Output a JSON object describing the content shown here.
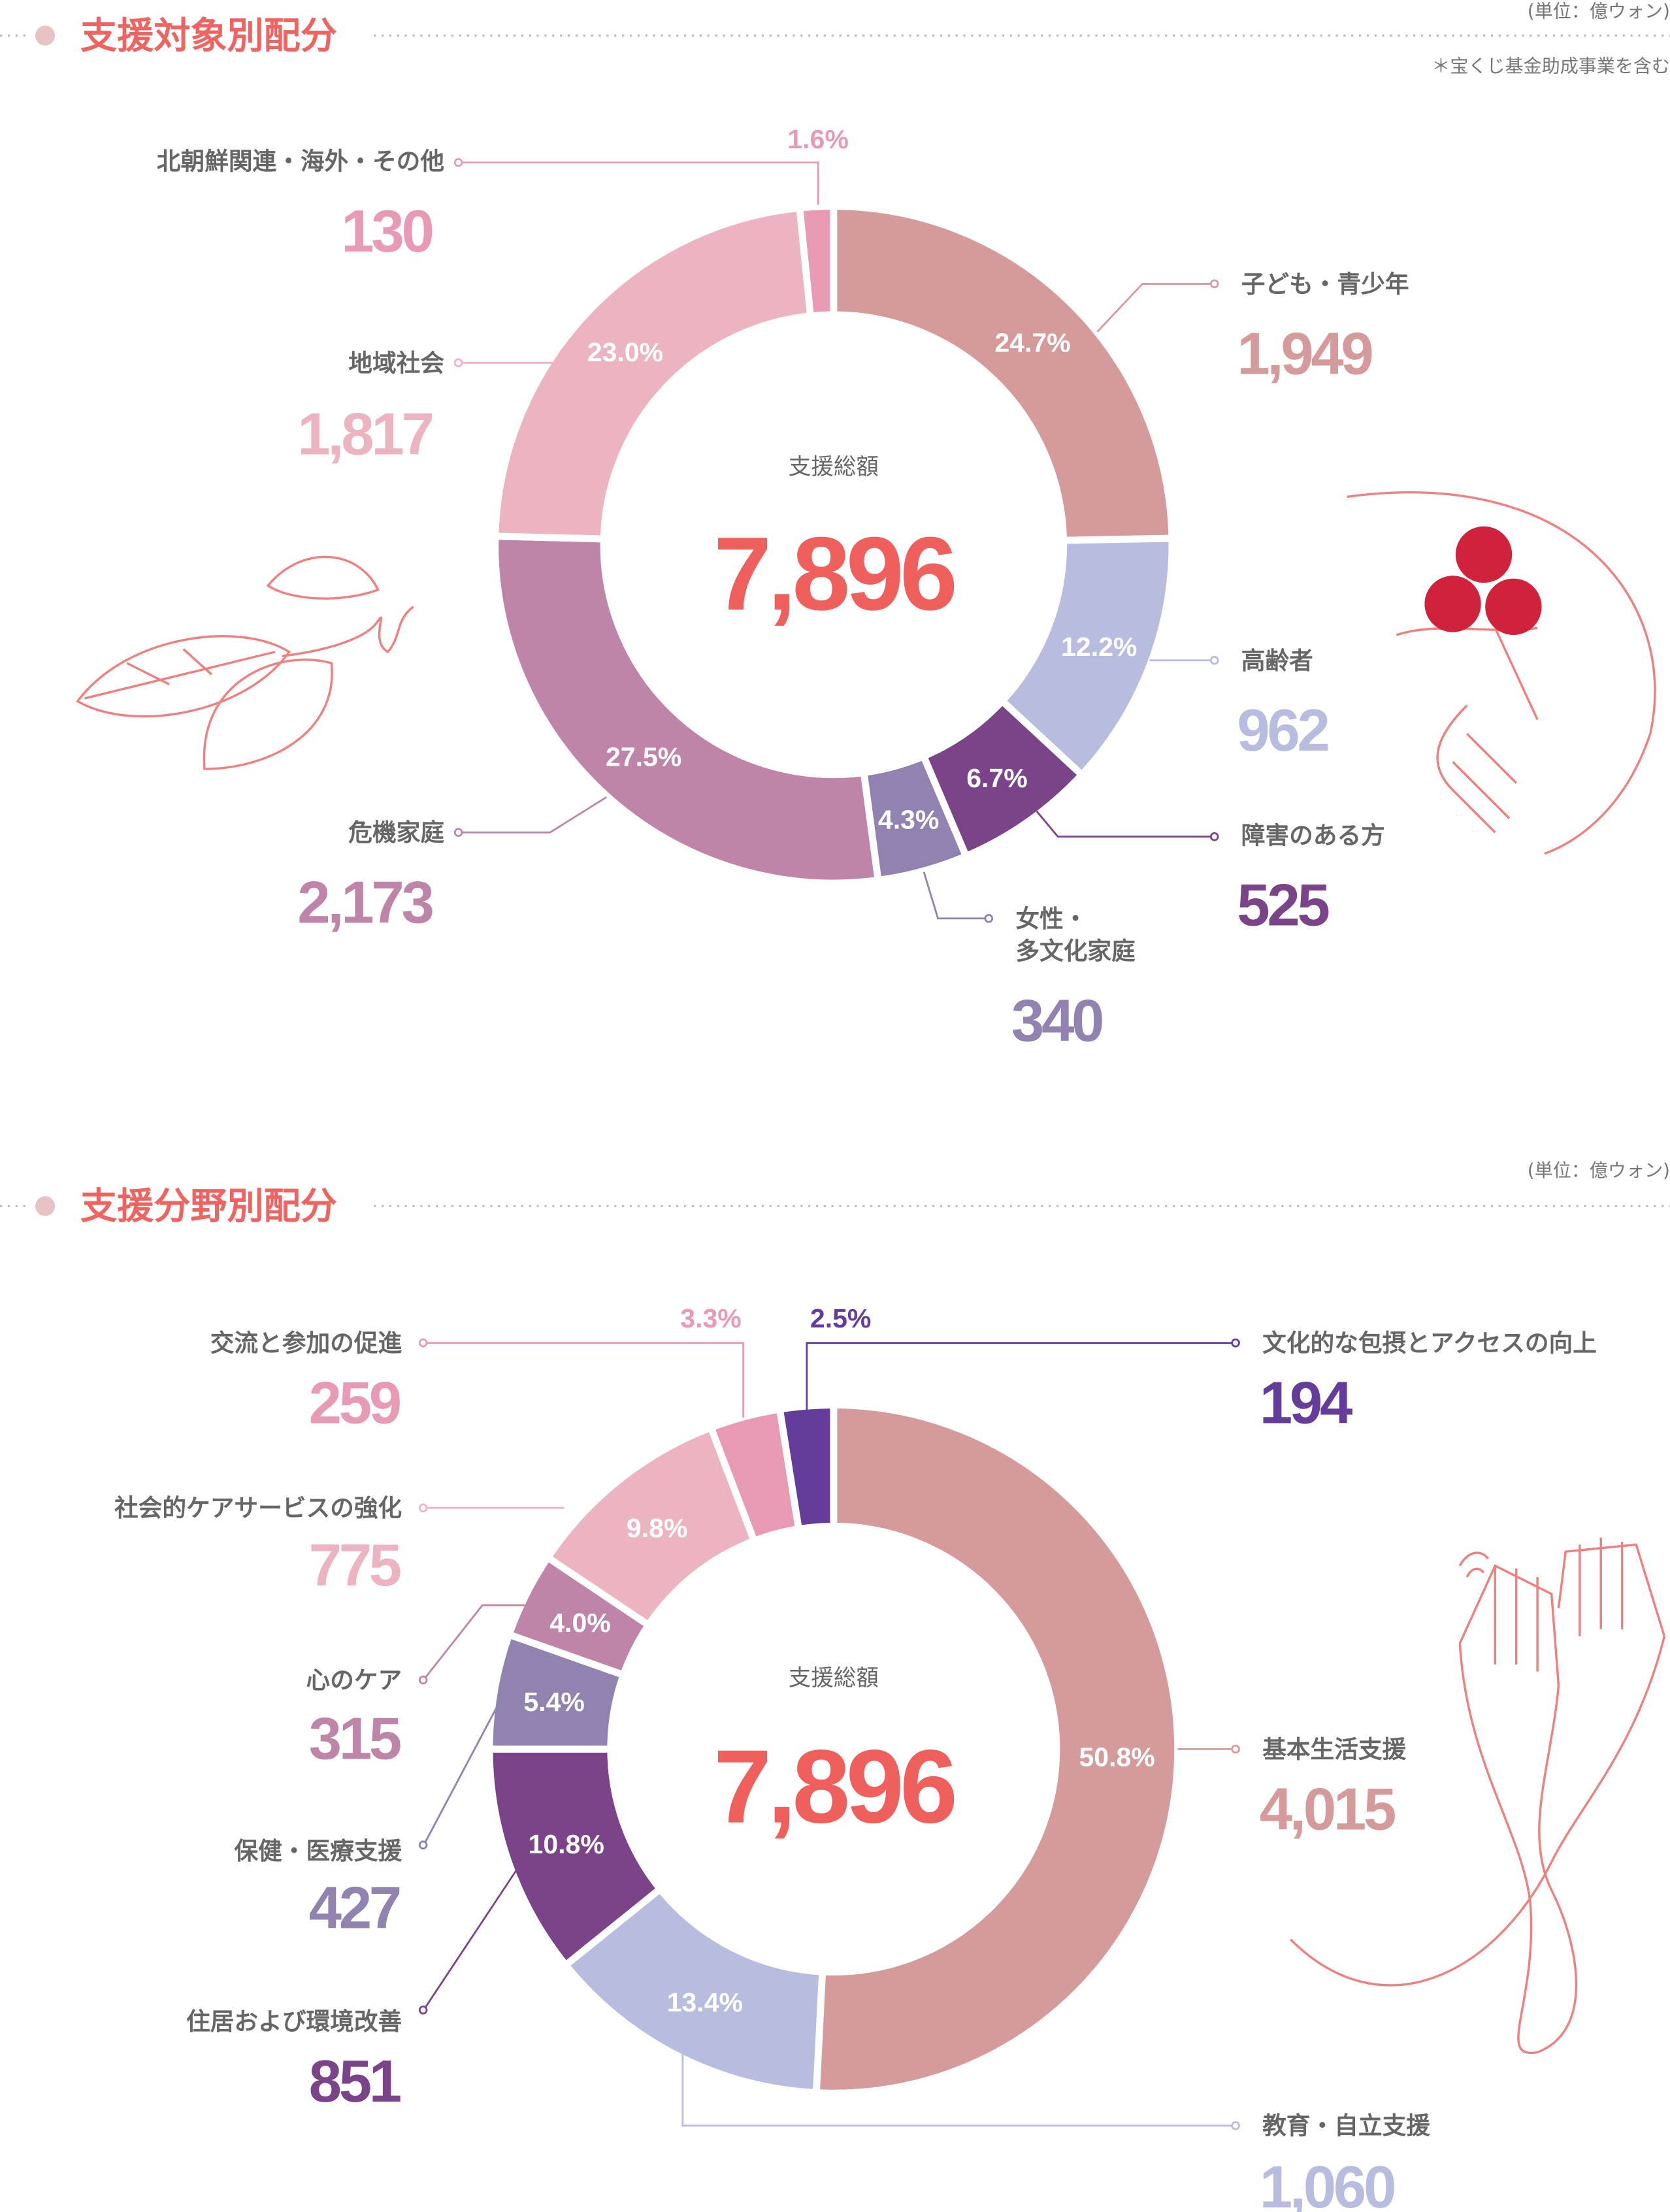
{
  "section1": {
    "title": "支援対象別配分",
    "unit": "(単位：億ウォン)",
    "note": "＊宝くじ基金助成事業を含む"
  },
  "section2": {
    "title": "支援分野別配分",
    "unit": "(単位：億ウォン)"
  },
  "colors": {
    "accent": "#ef5f5c",
    "label": "#666666"
  },
  "chart_data": [
    {
      "type": "pie",
      "title": "支援対象別配分",
      "center_label": "支援総額",
      "total": "7,896",
      "unit": "億ウォン",
      "slices": [
        {
          "name": "子ども・青少年",
          "value": "1,949",
          "pct": "24.7%",
          "p": 24.7,
          "color": "#d59a9a"
        },
        {
          "name": "高齢者",
          "value": "962",
          "pct": "12.2%",
          "p": 12.2,
          "color": "#b8bde0"
        },
        {
          "name": "障害のある方",
          "value": "525",
          "pct": "6.7%",
          "p": 6.7,
          "color": "#7b4489"
        },
        {
          "name": "女性・",
          "name2": "多文化家庭",
          "value": "340",
          "pct": "4.3%",
          "p": 4.3,
          "color": "#9182b0"
        },
        {
          "name": "危機家庭",
          "value": "2,173",
          "pct": "27.5%",
          "p": 27.5,
          "color": "#bf85a8"
        },
        {
          "name": "地域社会",
          "value": "1,817",
          "pct": "23.0%",
          "p": 23.0,
          "color": "#ecb4c0"
        },
        {
          "name": "北朝鮮関連・海外・その他",
          "value": "130",
          "pct": "1.6%",
          "p": 1.6,
          "color": "#e89ab4"
        }
      ]
    },
    {
      "type": "pie",
      "title": "支援分野別配分",
      "center_label": "支援総額",
      "total": "7,896",
      "unit": "億ウォン",
      "slices": [
        {
          "name": "基本生活支援",
          "value": "4,015",
          "pct": "50.8%",
          "p": 50.8,
          "color": "#d59a9a"
        },
        {
          "name": "教育・自立支援",
          "value": "1,060",
          "pct": "13.4%",
          "p": 13.4,
          "color": "#b8bde0"
        },
        {
          "name": "住居および環境改善",
          "value": "851",
          "pct": "10.8%",
          "p": 10.8,
          "color": "#7b4489"
        },
        {
          "name": "保健・医療支援",
          "value": "427",
          "pct": "5.4%",
          "p": 5.4,
          "color": "#9182b0"
        },
        {
          "name": "心のケア",
          "value": "315",
          "pct": "4.0%",
          "p": 4.0,
          "color": "#bf85a8"
        },
        {
          "name": "社会的ケアサービスの強化",
          "value": "775",
          "pct": "9.8%",
          "p": 9.8,
          "color": "#ecb4c0"
        },
        {
          "name": "交流と参加の促進",
          "value": "259",
          "pct": "3.3%",
          "p": 3.3,
          "color": "#e89ab4"
        },
        {
          "name": "文化的な包摂とアクセスの向上",
          "value": "194",
          "pct": "2.5%",
          "p": 2.5,
          "color": "#643d9a"
        }
      ]
    }
  ]
}
